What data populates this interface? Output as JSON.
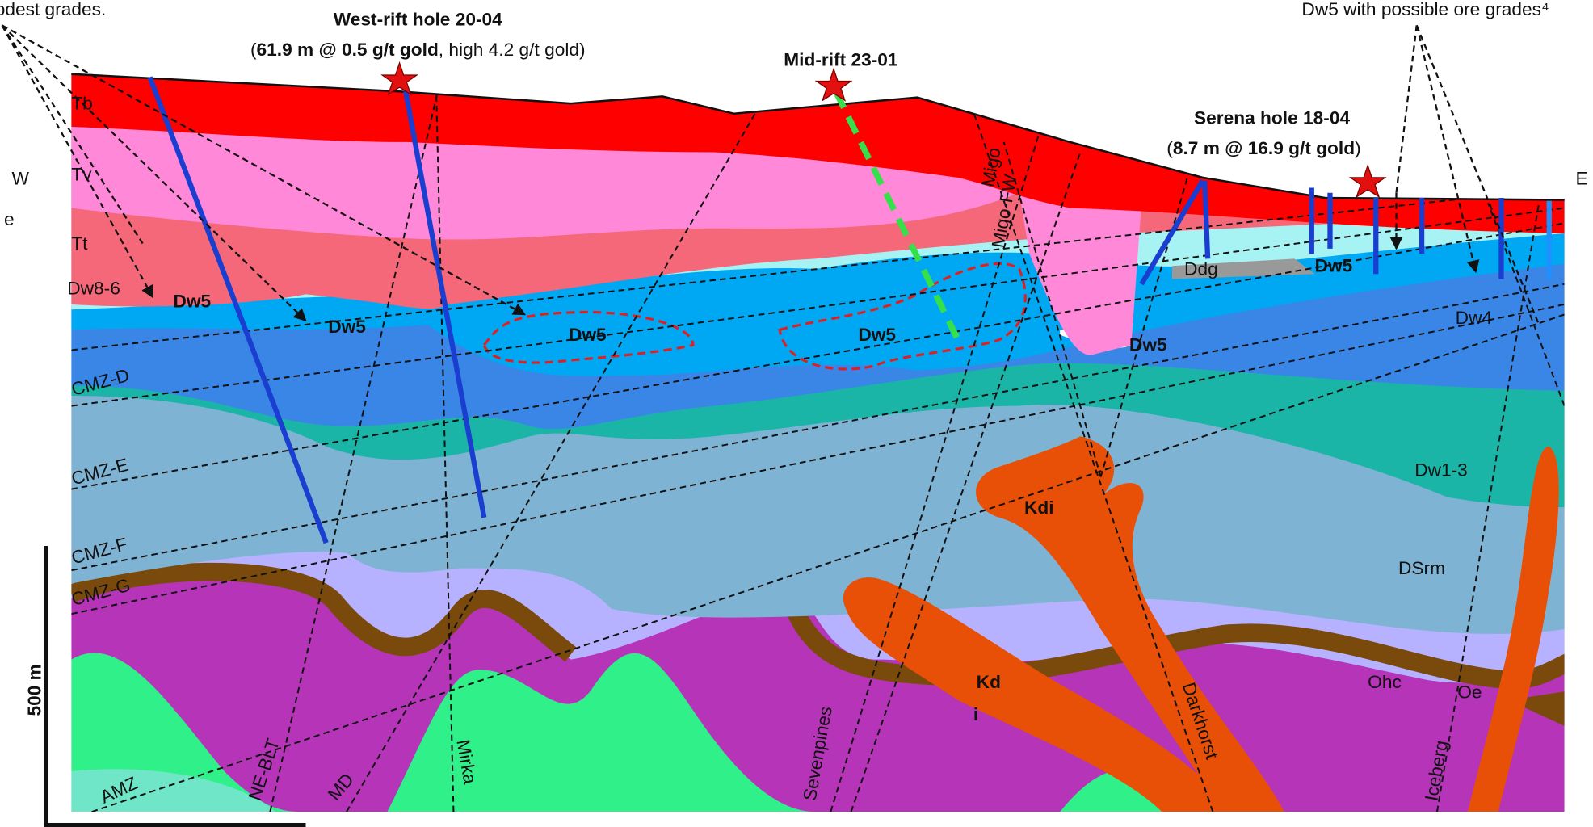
{
  "callouts": {
    "left_note": "odest grades.",
    "right_note": "Dw5 with possible ore grades⁴",
    "edge_fragment": "e"
  },
  "holes": [
    {
      "name": "West-rift hole 20-04",
      "result_open": "(",
      "result_bold": "61.9 m @ 0.5 g/t gold",
      "result_rest": ", high 4.2 g/t gold)"
    },
    {
      "name": "Mid-rift 23-01"
    },
    {
      "name": "Serena hole 18-04",
      "result_open": "(",
      "result_bold": "8.7 m @ 16.9 g/t gold",
      "result_rest": ")"
    }
  ],
  "directions": {
    "west": "W",
    "east": "E"
  },
  "units": [
    "Tb",
    "Tv",
    "Tt",
    "Dw8-6",
    "Dw5",
    "Dw5",
    "Dw5",
    "Dw5",
    "Dw5",
    "Ddg",
    "Dw5",
    "Dw4",
    "CMZ-D",
    "CMZ-E",
    "CMZ-F",
    "CMZ-G",
    "AMZ",
    "Dw1-3",
    "DSrm",
    "Kdi",
    "Kd",
    "i",
    "Ohc",
    "Oe"
  ],
  "faults": [
    "NE-BLT",
    "MD",
    "Mirka",
    "Sevenpines",
    "Darkhorst",
    "Iceberg",
    "Migo",
    "Migo-FW"
  ],
  "scale_bar": "500 m"
}
